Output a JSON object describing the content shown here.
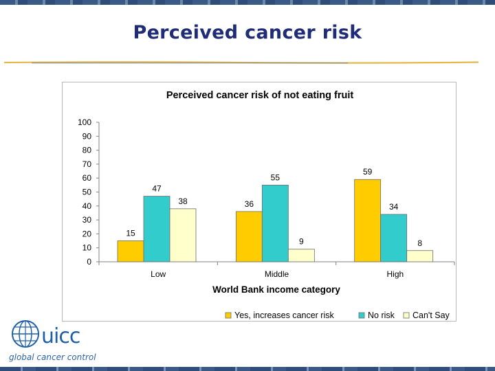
{
  "slide": {
    "title": "Perceived cancer risk"
  },
  "logo": {
    "name": "uicc",
    "tagline": "global cancer control"
  },
  "colors": {
    "title": "#1f2d78",
    "series_yes": "#ffcc00",
    "series_no": "#33cccc",
    "series_cant": "#ffffcc"
  },
  "chart_data": {
    "type": "bar",
    "title": "Perceived cancer risk of not eating fruit",
    "xlabel": "World Bank income category",
    "ylabel": "",
    "ylim": [
      0,
      100
    ],
    "yticks": [
      0,
      10,
      20,
      30,
      40,
      50,
      60,
      70,
      80,
      90,
      100
    ],
    "categories": [
      "Low",
      "Middle",
      "High"
    ],
    "series": [
      {
        "name": "Yes, increases cancer risk",
        "values": [
          15,
          36,
          59
        ],
        "color": "#ffcc00"
      },
      {
        "name": "No risk",
        "values": [
          47,
          55,
          34
        ],
        "color": "#33cccc"
      },
      {
        "name": "Can't Say",
        "values": [
          38,
          9,
          8
        ],
        "color": "#ffffcc"
      }
    ],
    "data_labels": true,
    "grid": false,
    "legend_position": "bottom-right"
  }
}
